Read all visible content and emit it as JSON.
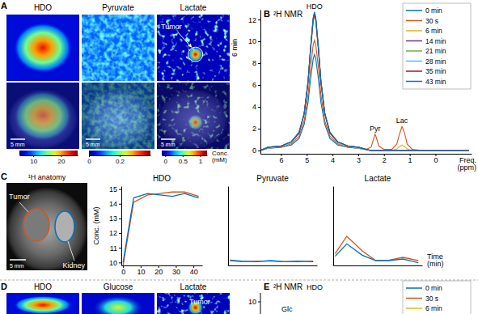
{
  "chart_data": [
    {
      "type": "line",
      "label": "B",
      "title": "²H NMR",
      "xlabel": "Freq. (ppm)",
      "x": [
        6.8,
        6.5,
        6,
        5.6,
        5.3,
        5.1,
        4.95,
        4.85,
        4.75,
        4.7,
        4.65,
        4.55,
        4.45,
        4.3,
        4.1,
        3.8,
        3.4,
        3.0,
        2.7,
        2.5,
        2.4,
        2.35,
        2.3,
        2.2,
        2.0,
        1.7,
        1.5,
        1.4,
        1.3,
        1.2,
        1.1,
        0.9,
        0.5,
        0,
        -1.3
      ],
      "xlim": [
        6.8,
        -1.4
      ],
      "xticks": [
        6,
        5,
        4,
        3,
        2,
        1,
        0
      ],
      "ylim": [
        -0.3,
        12.9
      ],
      "yticks": [
        0,
        2,
        4,
        6,
        8,
        10,
        12
      ],
      "legend": "top-right",
      "annotations": [
        {
          "text": "HDO",
          "x": 4.7,
          "y": 12.7
        },
        {
          "text": "Pyr",
          "x": 2.35,
          "y": 1.5
        },
        {
          "text": "Lac",
          "x": 1.3,
          "y": 2.2
        }
      ],
      "series": [
        {
          "name": "0 min",
          "color": "#0072bd",
          "values": [
            0,
            0.2,
            0.3,
            0.5,
            1.1,
            2.4,
            4.4,
            6.6,
            8.4,
            8.8,
            8.4,
            6.6,
            4.4,
            2.4,
            1.1,
            0.5,
            0.3,
            0.2,
            0.1,
            0,
            0,
            0,
            0,
            0,
            0,
            0,
            0,
            0,
            0,
            0,
            0,
            0,
            0,
            0,
            0
          ]
        },
        {
          "name": "30 s",
          "color": "#d95319",
          "values": [
            0,
            0.2,
            0.3,
            0.6,
            1.3,
            2.7,
            5.1,
            7.6,
            9.7,
            10.1,
            9.7,
            7.6,
            5.1,
            2.7,
            1.3,
            0.6,
            0.3,
            0.2,
            0.1,
            0.3,
            1.1,
            1.5,
            1.2,
            0.4,
            0.1,
            0.1,
            0.6,
            1.5,
            2.2,
            1.6,
            0.6,
            0.1,
            0,
            0,
            0
          ]
        },
        {
          "name": "6 min",
          "color": "#edb120",
          "values": [
            0,
            0.2,
            0.4,
            0.7,
            1.6,
            3.3,
            6.2,
            9.2,
            11.8,
            12.3,
            11.8,
            9.2,
            6.2,
            3.3,
            1.6,
            0.7,
            0.4,
            0.2,
            0.1,
            0,
            0,
            0,
            0,
            0,
            0,
            0,
            0.15,
            0.35,
            0.5,
            0.35,
            0.15,
            0,
            0,
            0,
            0
          ]
        },
        {
          "name": "14 min",
          "color": "#7e2f8e",
          "values": [
            0,
            0.3,
            0.4,
            0.8,
            1.6,
            3.4,
            6.3,
            9.4,
            12,
            12.5,
            12,
            9.4,
            6.3,
            3.4,
            1.6,
            0.8,
            0.4,
            0.3,
            0.1,
            0,
            0,
            0,
            0,
            0,
            0,
            0,
            0,
            0,
            0,
            0,
            0,
            0,
            0,
            0,
            0
          ]
        },
        {
          "name": "21 min",
          "color": "#77ac30",
          "values": [
            0,
            0.3,
            0.4,
            0.8,
            1.6,
            3.4,
            6.3,
            9.5,
            12.1,
            12.6,
            12.1,
            9.5,
            6.3,
            3.4,
            1.6,
            0.8,
            0.4,
            0.3,
            0.1,
            0,
            0,
            0,
            0,
            0,
            0,
            0,
            0,
            0,
            0,
            0,
            0,
            0,
            0,
            0,
            0
          ]
        },
        {
          "name": "28 min",
          "color": "#4dbeee",
          "values": [
            0,
            0.2,
            0.4,
            0.7,
            1.6,
            3.3,
            6.2,
            9.3,
            11.9,
            12.4,
            11.9,
            9.3,
            6.2,
            3.3,
            1.6,
            0.7,
            0.4,
            0.2,
            0.1,
            0,
            0,
            0,
            0,
            0,
            0,
            0,
            0,
            0,
            0,
            0,
            0,
            0,
            0,
            0,
            0
          ]
        },
        {
          "name": "35 min",
          "color": "#a2142f",
          "values": [
            0,
            0.3,
            0.4,
            0.8,
            1.6,
            3.4,
            6.3,
            9.4,
            12,
            12.5,
            12,
            9.4,
            6.3,
            3.4,
            1.6,
            0.8,
            0.4,
            0.3,
            0.1,
            0,
            0,
            0,
            0,
            0,
            0,
            0,
            0,
            0,
            0,
            0,
            0,
            0,
            0,
            0,
            0
          ]
        },
        {
          "name": "43 min",
          "color": "#0072bd",
          "values": [
            0,
            0.3,
            0.4,
            0.8,
            1.7,
            3.4,
            6.4,
            9.5,
            12.2,
            12.7,
            12.2,
            9.5,
            6.4,
            3.4,
            1.7,
            0.8,
            0.4,
            0.3,
            0.1,
            0,
            0,
            0,
            0,
            0,
            0,
            0,
            0,
            0,
            0,
            0,
            0,
            0,
            0,
            0,
            0
          ]
        }
      ]
    },
    {
      "type": "line",
      "title": "HDO",
      "ylabel": "Conc. (mM)",
      "x": [
        0,
        6,
        14,
        21,
        28,
        35,
        43
      ],
      "xlim": [
        -1,
        45
      ],
      "xticks": [
        0,
        10,
        20,
        30,
        40
      ],
      "ylim": [
        9.8,
        15.2
      ],
      "yticks": [
        10,
        11,
        12,
        13,
        14,
        15
      ],
      "series": [
        {
          "color": "#d95319",
          "values": [
            9.8,
            14.1,
            14.6,
            14.7,
            14.8,
            14.8,
            14.5
          ]
        },
        {
          "color": "#0072bd",
          "values": [
            10,
            14.4,
            14.7,
            14.6,
            14.5,
            14.7,
            14.4
          ]
        }
      ]
    },
    {
      "type": "line",
      "title": "Pyruvate",
      "x": [
        0,
        6,
        14,
        21,
        28,
        35,
        43
      ],
      "xlim": [
        -1,
        45
      ],
      "ylim": [
        -0.07,
        1.4
      ],
      "tick_labels": false,
      "series": [
        {
          "color": "#d95319",
          "values": [
            0.02,
            0,
            0.01,
            0.01,
            0,
            0,
            0.01
          ]
        },
        {
          "color": "#0072bd",
          "values": [
            0.03,
            0.01,
            0,
            0.02,
            0,
            0.01,
            0
          ]
        }
      ]
    },
    {
      "type": "line",
      "title": "Lactate",
      "xlabel": "Time (min)",
      "x": [
        0,
        6,
        14,
        21,
        28,
        35,
        43
      ],
      "xlim": [
        -1,
        45
      ],
      "ylim": [
        -0.07,
        1.4
      ],
      "tick_labels": false,
      "series": [
        {
          "color": "#d95319",
          "values": [
            0.15,
            0.47,
            0.2,
            0.02,
            0.03,
            0.08,
            0.02
          ]
        },
        {
          "color": "#0072bd",
          "values": [
            0.1,
            0.33,
            0.12,
            0.02,
            0.02,
            0.05,
            -0.02
          ]
        }
      ]
    }
  ],
  "panels": {
    "a": {
      "label": "A",
      "time": "6 min",
      "scale_bar": "5 mm",
      "annotation": "Tumor",
      "colorbar_label": "Conc. (mM)",
      "columns": [
        {
          "title": "HDO",
          "colorbar_range": [
            5,
            26
          ],
          "colorbar_ticks": [
            10,
            20
          ]
        },
        {
          "title": "Pyruvate",
          "colorbar_range": [
            0,
            0.4
          ],
          "colorbar_ticks": [
            0,
            0.2
          ]
        },
        {
          "title": "Lactate",
          "colorbar_range": [
            -0.1,
            1.2
          ],
          "colorbar_ticks": [
            0,
            0.5,
            1
          ]
        }
      ]
    },
    "c": {
      "label": "C",
      "title": "¹H anatomy",
      "scale_bar": "5 mm",
      "regions": [
        "Tumor",
        "Kidney"
      ]
    },
    "d": {
      "label": "D",
      "columns": [
        "HDO",
        "Glucose",
        "Lactate"
      ],
      "annotation": "Tumor"
    },
    "e": {
      "label": "E",
      "title": "²H NMR",
      "peaks": [
        "HDO",
        "Glc"
      ],
      "yticks": [
        10
      ],
      "legend": [
        {
          "name": "0 min",
          "color": "#0072bd"
        },
        {
          "name": "30 s",
          "color": "#d95319"
        },
        {
          "name": "6 min",
          "color": "#edb120"
        }
      ]
    }
  }
}
